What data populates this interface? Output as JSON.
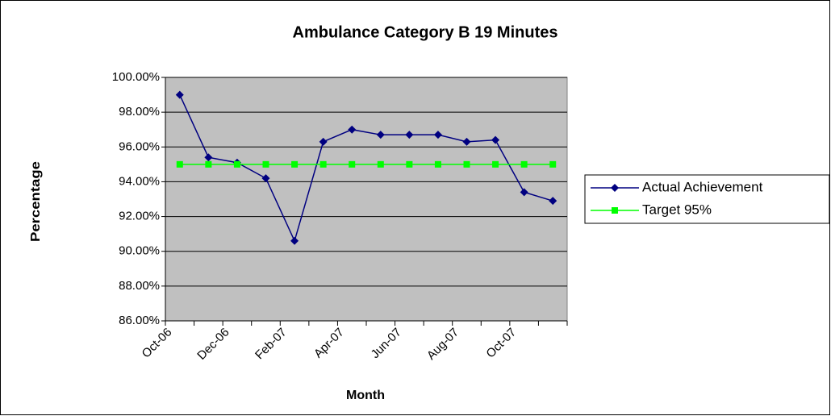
{
  "chart_data": {
    "type": "line",
    "title": "Ambulance Category B 19 Minutes",
    "x_label": "Month",
    "y_label": "Percentage",
    "categories": [
      "Oct-06",
      null,
      "Dec-06",
      null,
      "Feb-07",
      null,
      "Apr-07",
      null,
      "Jun-07",
      null,
      "Aug-07",
      null,
      "Oct-07",
      null
    ],
    "series": [
      {
        "name": "Actual Achievement",
        "color": "#000080",
        "marker": "diamond",
        "values": [
          99.0,
          95.4,
          95.1,
          94.2,
          90.6,
          96.3,
          97.0,
          96.7,
          96.7,
          96.7,
          96.3,
          96.4,
          93.4,
          92.9
        ]
      },
      {
        "name": "Target 95%",
        "color": "#00ff00",
        "marker": "square",
        "values": [
          95,
          95,
          95,
          95,
          95,
          95,
          95,
          95,
          95,
          95,
          95,
          95,
          95,
          95
        ]
      }
    ],
    "ylim": [
      86,
      100
    ],
    "yticks": [
      {
        "value": 86,
        "label": "86.00%"
      },
      {
        "value": 88,
        "label": "88.00%"
      },
      {
        "value": 90,
        "label": "90.00%"
      },
      {
        "value": 92,
        "label": "92.00%"
      },
      {
        "value": 94,
        "label": "94.00%"
      },
      {
        "value": 96,
        "label": "96.00%"
      },
      {
        "value": 98,
        "label": "98.00%"
      },
      {
        "value": 100,
        "label": "100.00%"
      }
    ],
    "grid": true,
    "legend": "right"
  }
}
